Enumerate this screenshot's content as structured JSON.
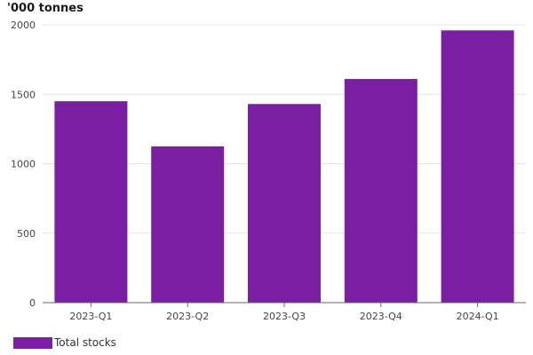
{
  "chart_data": {
    "type": "bar",
    "unit_label": "'000 tonnes",
    "categories": [
      "2023-Q1",
      "2023-Q2",
      "2023-Q3",
      "2023-Q4",
      "2024-Q1"
    ],
    "series": [
      {
        "name": "Total stocks",
        "values": [
          1450,
          1125,
          1430,
          1610,
          1960
        ],
        "color": "#7b1fa2"
      }
    ],
    "y_ticks": [
      0,
      500,
      1000,
      1500,
      2000
    ],
    "ylim": [
      0,
      2000
    ],
    "grid": true,
    "legend_position": "bottom-left"
  }
}
